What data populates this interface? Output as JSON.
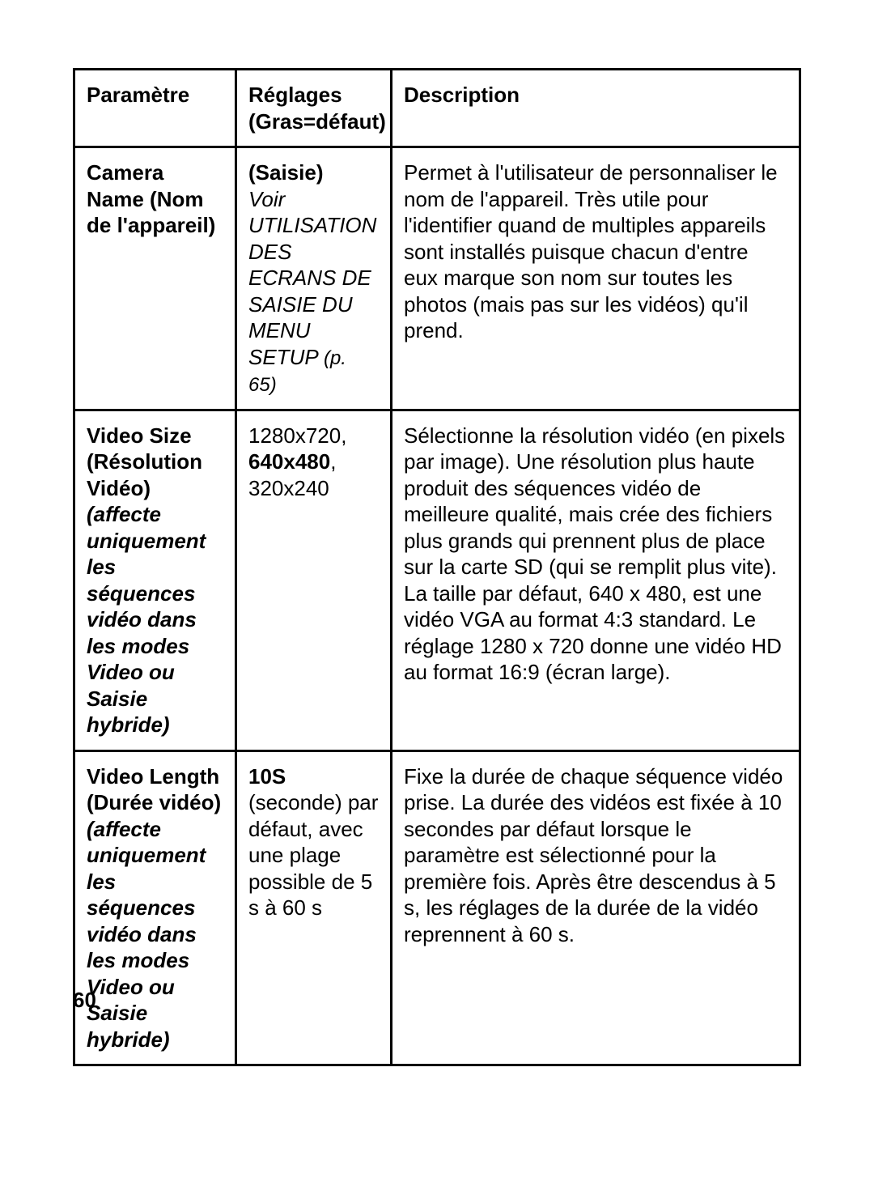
{
  "page_number": "60",
  "table": {
    "header": {
      "parametre": "Paramètre",
      "reglages_label": "Réglages",
      "reglages_sub": "(Gras=défaut)",
      "description": "Description"
    },
    "rows": {
      "camera_name": {
        "param_bold": "Camera Name (Nom de l'appareil)",
        "reglage_bold": "(Saisie)",
        "reglage_italic_1": "Voir UTILISATION DES ECRANS DE SAISIE DU MENU SETUP ",
        "reglage_italic_2": "(p. 65)",
        "description": "Permet à l'utilisateur de personnaliser le nom de l'appareil. Très utile pour l'identifier quand de multiples appareils sont installés puisque chacun d'entre eux marque son nom sur toutes les photos (mais pas sur les vidéos) qu'il prend."
      },
      "video_size": {
        "param_bold_1": "Video Size (Résolution Vidéo)",
        "param_italic": " (affecte uniquement les séquences vidéo dans les modes Video ou Saisie hybride)",
        "reglage_line1": "1280x720,",
        "reglage_line2_bold": "640x480",
        "reglage_line2_tail": ",",
        "reglage_line3": "320x240",
        "description": "Sélectionne la résolution vidéo (en pixels par image). Une résolution plus haute produit des séquences vidéo de meilleure qualité, mais crée des fichiers plus grands qui prennent plus de place sur la carte SD (qui se remplit plus vite). La taille par défaut, 640 x 480, est une vidéo VGA au format 4:3 standard. Le réglage 1280 x 720 donne une vidéo HD au format 16:9 (écran large)."
      },
      "video_length": {
        "param_bold_1": "Video Length (Durée vidéo)",
        "param_italic": " (affecte uniquement les séquences vidéo dans les modes Video ou Saisie hybride)",
        "reglage_bold": "10S",
        "reglage_tail": " (seconde) par défaut, avec une plage possible de 5 s à 60 s",
        "description": "Fixe la durée de chaque séquence vidéo prise. La durée des vidéos est fixée à 10 secondes par défaut lorsque le paramètre est sélectionné pour la première fois. Après être descendus à 5 s, les réglages de la durée de la vidéo reprennent à 60 s."
      }
    }
  }
}
